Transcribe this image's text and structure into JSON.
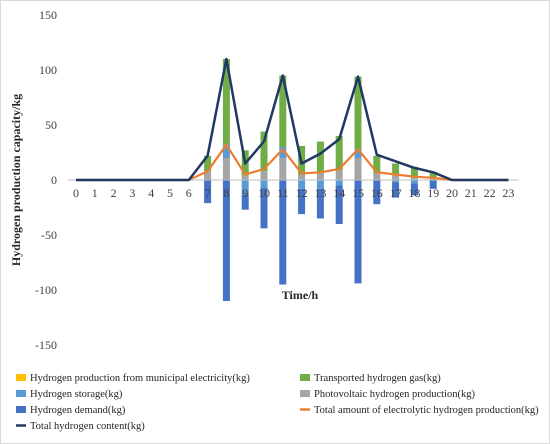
{
  "chart_data": {
    "type": "bar",
    "title": "",
    "xlabel": "Time/h",
    "ylabel": "Hydrogen production capacity/kg",
    "ylim": [
      -150,
      150
    ],
    "yticks": [
      150,
      100,
      50,
      0,
      -50,
      -100,
      -150
    ],
    "grid": false,
    "legend_position": "bottom",
    "categories": [
      "0",
      "1",
      "2",
      "3",
      "4",
      "5",
      "6",
      "7",
      "8",
      "9",
      "10",
      "11",
      "12",
      "13",
      "14",
      "15",
      "16",
      "17",
      "18",
      "19",
      "20",
      "21",
      "22",
      "23"
    ],
    "series": [
      {
        "name": "Hydrogen production from municipal electricity(kg)",
        "kind": "bar",
        "stack": "pos",
        "color": "#ffc000",
        "values": [
          0,
          0,
          0,
          0,
          0,
          0,
          0,
          0,
          0,
          0,
          0,
          0,
          0,
          0,
          0,
          0,
          0,
          0,
          0,
          0,
          0,
          0,
          0,
          0
        ]
      },
      {
        "name": "Photovoltaic hydrogen production(kg)",
        "kind": "bar",
        "stack": "pos",
        "color": "#a5a5a5",
        "values": [
          0,
          0,
          0,
          0,
          0,
          0,
          0,
          8,
          20,
          4,
          8,
          20,
          5,
          6,
          9,
          20,
          6,
          4,
          2,
          1,
          0,
          0,
          0,
          0
        ]
      },
      {
        "name": "Hydrogen storage(kg)",
        "kind": "bar",
        "stack": "pos",
        "color": "#5b9bd5",
        "values": [
          0,
          0,
          0,
          0,
          0,
          0,
          0,
          0,
          12,
          0,
          0,
          10,
          0,
          0,
          0,
          8,
          0,
          0,
          0,
          0,
          0,
          0,
          0,
          0
        ]
      },
      {
        "name": "Transported hydrogen gas(kg)",
        "kind": "bar",
        "stack": "pos",
        "color": "#70ad47",
        "values": [
          0,
          0,
          0,
          0,
          0,
          0,
          0,
          14,
          78,
          23,
          36,
          65,
          26,
          29,
          31,
          66,
          16,
          11,
          10,
          6,
          0,
          0,
          0,
          0
        ]
      },
      {
        "name": "Hydrogen storage(kg)",
        "kind": "bar",
        "stack": "neg",
        "color": "#5b9bd5",
        "values": [
          0,
          0,
          0,
          0,
          0,
          0,
          0,
          0,
          0,
          -13,
          -7,
          0,
          -8,
          -8,
          -5,
          0,
          0,
          -2,
          -3,
          0,
          0,
          0,
          0,
          0
        ]
      },
      {
        "name": "Hydrogen demand(kg)",
        "kind": "bar",
        "stack": "neg",
        "color": "#4472c4",
        "values": [
          0,
          0,
          0,
          0,
          0,
          0,
          0,
          -21,
          -110,
          -14,
          -37,
          -95,
          -23,
          -27,
          -35,
          -94,
          -22,
          -14,
          -11,
          -8,
          0,
          0,
          0,
          0
        ]
      },
      {
        "name": "Total amount of electrolytic hydrogen production(kg)",
        "kind": "line",
        "color": "#ed7d31",
        "values": [
          0,
          0,
          0,
          0,
          0,
          0,
          0,
          8,
          32,
          5,
          10,
          28,
          6,
          7,
          10,
          28,
          7,
          5,
          3,
          2,
          0,
          0,
          0,
          0
        ]
      },
      {
        "name": "Total hydrogen content(kg)",
        "kind": "line",
        "color": "#203864",
        "values": [
          0,
          0,
          0,
          0,
          0,
          0,
          0,
          22,
          110,
          15,
          35,
          95,
          15,
          24,
          37,
          94,
          23,
          17,
          11,
          7,
          0,
          0,
          0,
          0
        ]
      }
    ],
    "legend": [
      {
        "label": "Hydrogen production from municipal electricity(kg)",
        "color": "#ffc000",
        "shape": "bar"
      },
      {
        "label": "Transported hydrogen gas(kg)",
        "color": "#70ad47",
        "shape": "bar"
      },
      {
        "label": "Hydrogen storage(kg)",
        "color": "#5b9bd5",
        "shape": "bar"
      },
      {
        "label": "Photovoltaic hydrogen production(kg)",
        "color": "#a5a5a5",
        "shape": "bar"
      },
      {
        "label": "Hydrogen demand(kg)",
        "color": "#4472c4",
        "shape": "bar"
      },
      {
        "label": "Total amount of electrolytic hydrogen production(kg)",
        "color": "#ed7d31",
        "shape": "line"
      },
      {
        "label": "Total hydrogen content(kg)",
        "color": "#203864",
        "shape": "line"
      }
    ]
  }
}
